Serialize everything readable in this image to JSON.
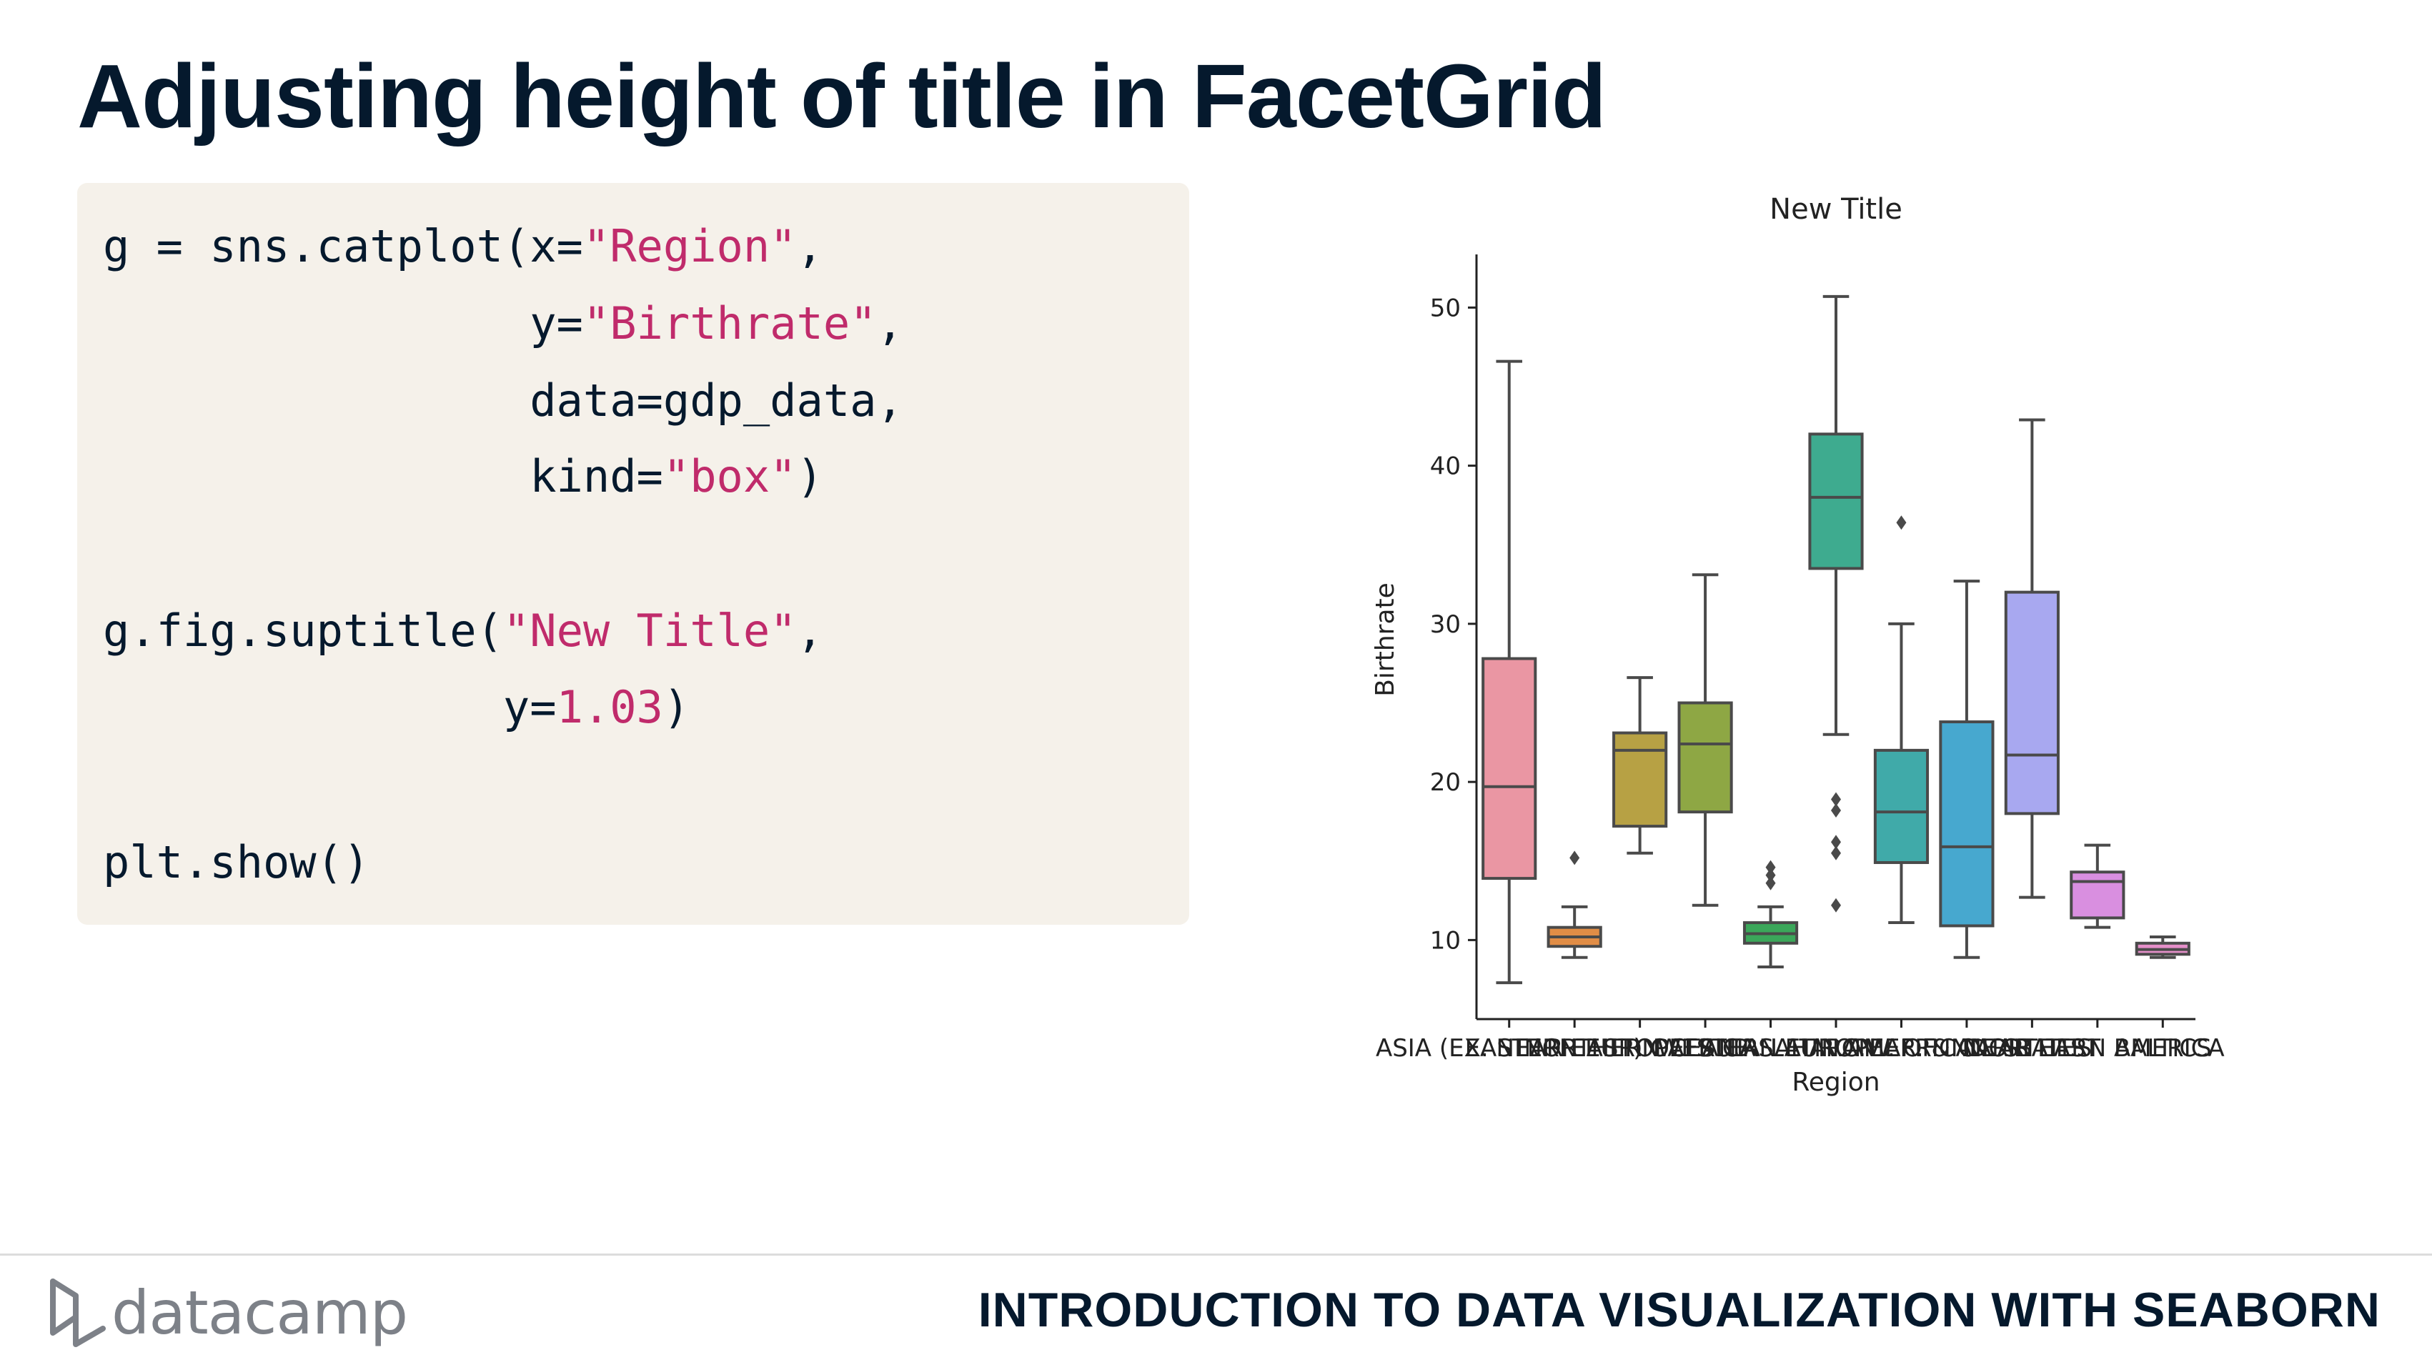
{
  "slide": {
    "title": "Adjusting height of title in FacetGrid",
    "footer_logo_text": "datacamp",
    "footer_course": "INTRODUCTION TO DATA VISUALIZATION WITH SEABORN"
  },
  "code": {
    "l1_a": "g = sns.catplot(x=",
    "l1_s": "\"Region\"",
    "l1_b": ",",
    "l2_a": "                y=",
    "l2_s": "\"Birthrate\"",
    "l2_b": ",",
    "l3": "                data=gdp_data,",
    "l4_a": "                kind=",
    "l4_s": "\"box\"",
    "l4_b": ")",
    "l5_a": "g.fig.suptitle(",
    "l5_s": "\"New Title\"",
    "l5_b": ",",
    "l6_a": "               y=",
    "l6_n": "1.03",
    "l6_b": ")",
    "l7": "plt.show()"
  },
  "chart_data": {
    "type": "box",
    "title": "New Title",
    "xlabel": "Region",
    "ylabel": "Birthrate",
    "ylim": [
      5,
      53
    ],
    "yticks": [
      10,
      20,
      30,
      40,
      50
    ],
    "grid": false,
    "categories": [
      "ASIA (EX. NEAR EAST)",
      "EASTERN EUROPE",
      "NORTHERN AFRICA",
      "OCEANIA",
      "WESTERN EUROPE",
      "SUB-SAHARAN AFRICA",
      "LATIN AMER. & CARIB",
      "C.W. OF IND. STATES",
      "NEAR EAST",
      "NORTHERN AMERICA",
      "BALTICS"
    ],
    "boxes": [
      {
        "color": "#ea96a3",
        "whisker_low": 7.3,
        "q1": 13.9,
        "median": 19.7,
        "q3": 27.8,
        "whisker_high": 46.6,
        "outliers": []
      },
      {
        "color": "#e18d46",
        "whisker_low": 8.9,
        "q1": 9.6,
        "median": 10.2,
        "q3": 10.8,
        "whisker_high": 12.1,
        "outliers": [
          15.2
        ]
      },
      {
        "color": "#b7a144",
        "whisker_low": 15.5,
        "q1": 17.2,
        "median": 22.0,
        "q3": 23.1,
        "whisker_high": 26.6,
        "outliers": []
      },
      {
        "color": "#8ea744",
        "whisker_low": 12.2,
        "q1": 18.1,
        "median": 22.4,
        "q3": 25.0,
        "whisker_high": 33.1,
        "outliers": []
      },
      {
        "color": "#3ba75a",
        "whisker_low": 8.3,
        "q1": 9.8,
        "median": 10.4,
        "q3": 11.1,
        "whisker_high": 12.1,
        "outliers": [
          13.6,
          14.1,
          14.6
        ]
      },
      {
        "color": "#3eab8f",
        "whisker_low": 23.0,
        "q1": 33.5,
        "median": 38.0,
        "q3": 42.0,
        "whisker_high": 50.7,
        "outliers": [
          12.2,
          15.5,
          16.2,
          18.2,
          18.9
        ]
      },
      {
        "color": "#40aaa9",
        "whisker_low": 11.1,
        "q1": 14.9,
        "median": 18.1,
        "q3": 22.0,
        "whisker_high": 30.0,
        "outliers": [
          36.4
        ]
      },
      {
        "color": "#47a8cf",
        "whisker_low": 8.9,
        "q1": 10.9,
        "median": 15.9,
        "q3": 23.8,
        "whisker_high": 32.7,
        "outliers": []
      },
      {
        "color": "#a8a8f0",
        "whisker_low": 12.7,
        "q1": 18.0,
        "median": 21.7,
        "q3": 32.0,
        "whisker_high": 42.9,
        "outliers": []
      },
      {
        "color": "#d98fe0",
        "whisker_low": 10.8,
        "q1": 11.4,
        "median": 13.7,
        "q3": 14.3,
        "whisker_high": 16.0,
        "outliers": []
      },
      {
        "color": "#e58fc9",
        "whisker_low": 8.9,
        "q1": 9.1,
        "median": 9.4,
        "q3": 9.8,
        "whisker_high": 10.2,
        "outliers": []
      }
    ]
  }
}
